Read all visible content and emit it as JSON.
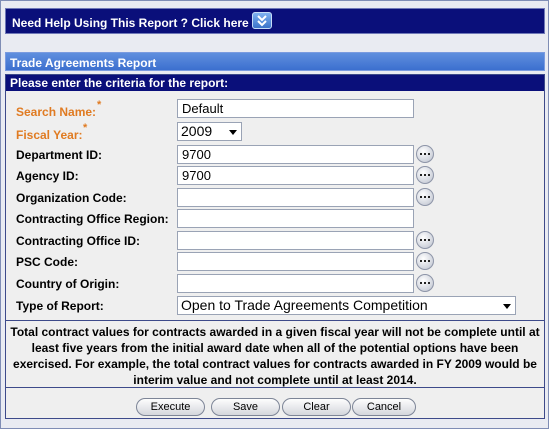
{
  "help": {
    "text": "Need Help Using This Report ? Click here",
    "icon": "chevron-down-icon"
  },
  "report": {
    "title": "Trade Agreements Report"
  },
  "criteria": {
    "header": "Please enter the criteria for the report:"
  },
  "form": {
    "search_name": {
      "label": "Search Name:",
      "value": "Default",
      "required": true
    },
    "fiscal_year": {
      "label": "Fiscal Year:",
      "value": "2009",
      "required": true
    },
    "department_id": {
      "label": "Department ID:",
      "value": "9700"
    },
    "agency_id": {
      "label": "Agency ID:",
      "value": "9700"
    },
    "organization_code": {
      "label": "Organization Code:",
      "value": ""
    },
    "contracting_office_region": {
      "label": "Contracting Office Region:",
      "value": ""
    },
    "contracting_office_id": {
      "label": "Contracting Office ID:",
      "value": ""
    },
    "psc_code": {
      "label": "PSC Code:",
      "value": ""
    },
    "country_of_origin": {
      "label": "Country of Origin:",
      "value": ""
    },
    "type_of_report": {
      "label": "Type of Report:",
      "value": "Open to Trade Agreements Competition"
    }
  },
  "note": {
    "text": "Total contract values for contracts awarded in a given fiscal year will not be complete until at least five years from the initial award date when all of the potential options have been exercised. For example, the total contract values for contracts awarded in FY 2009 would be interim value and not complete until at least 2014."
  },
  "buttons": {
    "execute": "Execute",
    "save": "Save",
    "clear": "Clear",
    "cancel": "Cancel"
  },
  "colors": {
    "header_navy": "#0a0f7a",
    "title_blue": "#4a7fd6",
    "required_orange": "#e07b22"
  }
}
